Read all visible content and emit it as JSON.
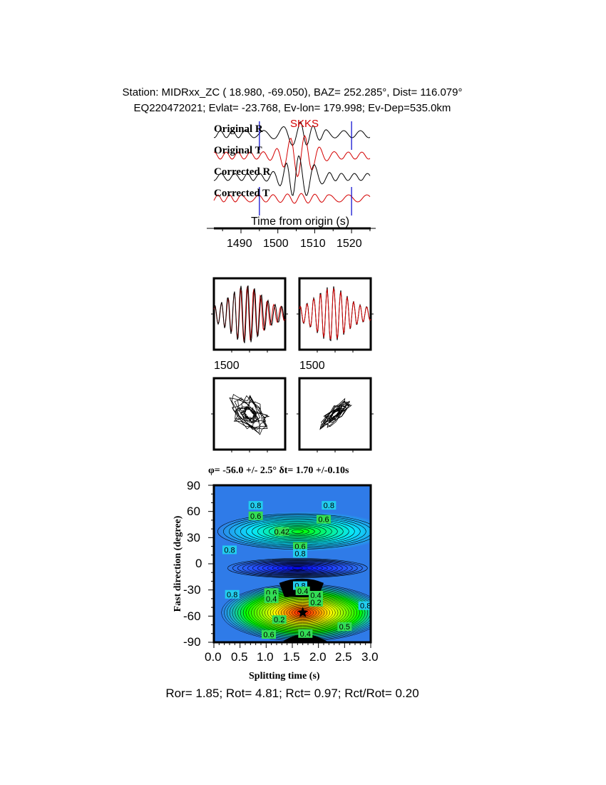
{
  "header": {
    "station_line": "Station: MIDRxx_ZC (  18.980,  -69.050), BAZ=  252.285°, Dist=  116.079°",
    "event_line": "EQ220472021; Evlat= -23.768, Ev-lon= 179.998; Ev-Dep=535.0km"
  },
  "traces": {
    "phase_label": "SKKS",
    "labels": [
      "Original R",
      "Original T",
      "Corrected R",
      "Corrected T"
    ],
    "xlabel": "Time from origin (s)",
    "xticks": [
      "1490",
      "1500",
      "1510",
      "1520"
    ],
    "window_start_s": 1495,
    "window_end_s": 1520,
    "xlim": [
      1481,
      1525
    ],
    "colors": {
      "radial": "#000000",
      "transverse": "#d40000",
      "window": "#0000cc"
    }
  },
  "waveform_panels": {
    "tick_labels": [
      "1500",
      "1500"
    ]
  },
  "chart_data": {
    "type": "heatmap",
    "title": "φ= -56.0 +/- 2.5° δt= 1.70 +/-0.10s",
    "xlabel": "Splitting time (s)",
    "ylabel": "Fast direction (degree)",
    "xlim": [
      0.0,
      3.0
    ],
    "ylim": [
      -90,
      90
    ],
    "xticks": [
      "0.0",
      "0.5",
      "1.0",
      "1.5",
      "2.0",
      "2.5",
      "3.0"
    ],
    "yticks": [
      "90",
      "60",
      "30",
      "0",
      "-30",
      "-60",
      "-90"
    ],
    "best_fit": {
      "dt": 1.7,
      "phi": -56.0
    },
    "contour_labels": [
      {
        "text": "0.8",
        "x": 0.8,
        "y": 67
      },
      {
        "text": "0.8",
        "x": 2.2,
        "y": 67
      },
      {
        "text": "0.6",
        "x": 0.8,
        "y": 55
      },
      {
        "text": "0.6",
        "x": 2.1,
        "y": 51
      },
      {
        "text": "0.42",
        "x": 1.3,
        "y": 37
      },
      {
        "text": "0.6",
        "x": 1.65,
        "y": 20
      },
      {
        "text": "0.8",
        "x": 1.65,
        "y": 12
      },
      {
        "text": "0.8",
        "x": 0.3,
        "y": 16
      },
      {
        "text": "0.8",
        "x": 1.65,
        "y": -25
      },
      {
        "text": "0.4",
        "x": 1.7,
        "y": -31
      },
      {
        "text": "0.6",
        "x": 1.1,
        "y": -33
      },
      {
        "text": "0.4",
        "x": 1.1,
        "y": -40
      },
      {
        "text": "0.4",
        "x": 1.95,
        "y": -36
      },
      {
        "text": "0.2",
        "x": 1.95,
        "y": -44
      },
      {
        "text": "0.2",
        "x": 1.25,
        "y": -64
      },
      {
        "text": "0.4",
        "x": 1.75,
        "y": -80
      },
      {
        "text": "0.6",
        "x": 1.05,
        "y": -81
      },
      {
        "text": "0.5",
        "x": 2.5,
        "y": -72
      },
      {
        "text": "0.8",
        "x": 0.35,
        "y": -35
      },
      {
        "text": "0.8",
        "x": 2.9,
        "y": -48
      }
    ],
    "colorscale": [
      "#ff0000",
      "#ffff00",
      "#00ff00",
      "#00ffff",
      "#0000ff"
    ]
  },
  "footer": {
    "ratios": "Ror= 1.85; Rot= 4.81; Rct= 0.97; Rct/Rot= 0.20"
  }
}
